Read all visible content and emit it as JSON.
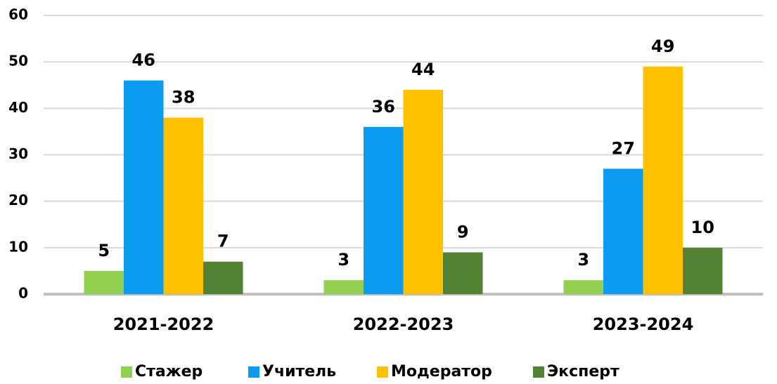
{
  "chart_data": {
    "type": "bar",
    "categories": [
      "2021-2022",
      "2022-2023",
      "2023-2024"
    ],
    "series": [
      {
        "name": "Стажер",
        "color": "#92d050",
        "values": [
          5,
          3,
          3
        ]
      },
      {
        "name": "Учитель",
        "color": "#0b9cf2",
        "values": [
          46,
          36,
          27
        ]
      },
      {
        "name": "Модератор",
        "color": "#ffc000",
        "values": [
          38,
          44,
          49
        ]
      },
      {
        "name": "Эксперт",
        "color": "#548235",
        "values": [
          7,
          9,
          10
        ]
      }
    ],
    "ylim": [
      0,
      60
    ],
    "yticks": [
      0,
      10,
      20,
      30,
      40,
      50,
      60
    ],
    "grid": true,
    "legend": "bottom"
  }
}
